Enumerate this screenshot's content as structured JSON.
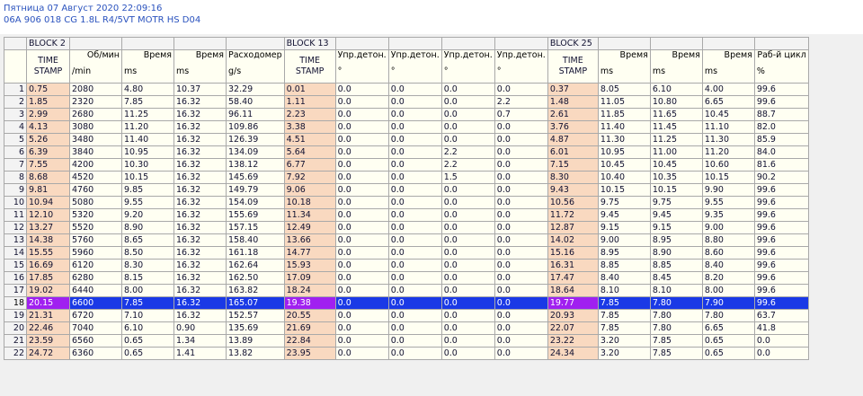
{
  "header": {
    "datetime": "Пятница 07 Август 2020 22:09:16",
    "ecu": "06A 906 018 CG  1.8L R4/5VT MOTR HS D04"
  },
  "blocks": [
    "BLOCK 2",
    "BLOCK 13",
    "BLOCK 25"
  ],
  "columns": [
    {
      "top": "",
      "bottom": "TIME\nSTAMP",
      "type": "ts"
    },
    {
      "top": "Об/мин",
      "bottom": "/min"
    },
    {
      "top": "Время",
      "bottom": "ms"
    },
    {
      "top": "Время",
      "bottom": "ms"
    },
    {
      "top": "Расходомер",
      "bottom": "g/s"
    },
    {
      "top": "",
      "bottom": "TIME\nSTAMP",
      "type": "ts"
    },
    {
      "top": "Упр.детон.",
      "bottom": "°"
    },
    {
      "top": "Упр.детон.",
      "bottom": "°"
    },
    {
      "top": "Упр.детон.",
      "bottom": "°"
    },
    {
      "top": "Упр.детон.",
      "bottom": "°"
    },
    {
      "top": "",
      "bottom": "TIME\nSTAMP",
      "type": "ts"
    },
    {
      "top": "Время",
      "bottom": "ms"
    },
    {
      "top": "Время",
      "bottom": "ms"
    },
    {
      "top": "Время",
      "bottom": "ms"
    },
    {
      "top": "Раб-й цикл",
      "bottom": "%"
    }
  ],
  "selected_row": 18,
  "rows": [
    [
      "0.75",
      "2080",
      "4.80",
      "10.37",
      "32.29",
      "0.01",
      "0.0",
      "0.0",
      "0.0",
      "0.0",
      "0.37",
      "8.05",
      "6.10",
      "4.00",
      "99.6"
    ],
    [
      "1.85",
      "2320",
      "7.85",
      "16.32",
      "58.40",
      "1.11",
      "0.0",
      "0.0",
      "0.0",
      "2.2",
      "1.48",
      "11.05",
      "10.80",
      "6.65",
      "99.6"
    ],
    [
      "2.99",
      "2680",
      "11.25",
      "16.32",
      "96.11",
      "2.23",
      "0.0",
      "0.0",
      "0.0",
      "0.7",
      "2.61",
      "11.85",
      "11.65",
      "10.45",
      "88.7"
    ],
    [
      "4.13",
      "3080",
      "11.20",
      "16.32",
      "109.86",
      "3.38",
      "0.0",
      "0.0",
      "0.0",
      "0.0",
      "3.76",
      "11.40",
      "11.45",
      "11.10",
      "82.0"
    ],
    [
      "5.26",
      "3480",
      "11.40",
      "16.32",
      "126.39",
      "4.51",
      "0.0",
      "0.0",
      "0.0",
      "0.0",
      "4.87",
      "11.30",
      "11.25",
      "11.30",
      "85.9"
    ],
    [
      "6.39",
      "3840",
      "10.95",
      "16.32",
      "134.09",
      "5.64",
      "0.0",
      "0.0",
      "2.2",
      "0.0",
      "6.01",
      "10.95",
      "11.00",
      "11.20",
      "84.0"
    ],
    [
      "7.55",
      "4200",
      "10.30",
      "16.32",
      "138.12",
      "6.77",
      "0.0",
      "0.0",
      "2.2",
      "0.0",
      "7.15",
      "10.45",
      "10.45",
      "10.60",
      "81.6"
    ],
    [
      "8.68",
      "4520",
      "10.15",
      "16.32",
      "145.69",
      "7.92",
      "0.0",
      "0.0",
      "1.5",
      "0.0",
      "8.30",
      "10.40",
      "10.35",
      "10.15",
      "90.2"
    ],
    [
      "9.81",
      "4760",
      "9.85",
      "16.32",
      "149.79",
      "9.06",
      "0.0",
      "0.0",
      "0.0",
      "0.0",
      "9.43",
      "10.15",
      "10.15",
      "9.90",
      "99.6"
    ],
    [
      "10.94",
      "5080",
      "9.55",
      "16.32",
      "154.09",
      "10.18",
      "0.0",
      "0.0",
      "0.0",
      "0.0",
      "10.56",
      "9.75",
      "9.75",
      "9.55",
      "99.6"
    ],
    [
      "12.10",
      "5320",
      "9.20",
      "16.32",
      "155.69",
      "11.34",
      "0.0",
      "0.0",
      "0.0",
      "0.0",
      "11.72",
      "9.45",
      "9.45",
      "9.35",
      "99.6"
    ],
    [
      "13.27",
      "5520",
      "8.90",
      "16.32",
      "157.15",
      "12.49",
      "0.0",
      "0.0",
      "0.0",
      "0.0",
      "12.87",
      "9.15",
      "9.15",
      "9.00",
      "99.6"
    ],
    [
      "14.38",
      "5760",
      "8.65",
      "16.32",
      "158.40",
      "13.66",
      "0.0",
      "0.0",
      "0.0",
      "0.0",
      "14.02",
      "9.00",
      "8.95",
      "8.80",
      "99.6"
    ],
    [
      "15.55",
      "5960",
      "8.50",
      "16.32",
      "161.18",
      "14.77",
      "0.0",
      "0.0",
      "0.0",
      "0.0",
      "15.16",
      "8.95",
      "8.90",
      "8.60",
      "99.6"
    ],
    [
      "16.69",
      "6120",
      "8.30",
      "16.32",
      "162.64",
      "15.93",
      "0.0",
      "0.0",
      "0.0",
      "0.0",
      "16.31",
      "8.85",
      "8.85",
      "8.40",
      "99.6"
    ],
    [
      "17.85",
      "6280",
      "8.15",
      "16.32",
      "162.50",
      "17.09",
      "0.0",
      "0.0",
      "0.0",
      "0.0",
      "17.47",
      "8.40",
      "8.45",
      "8.20",
      "99.6"
    ],
    [
      "19.02",
      "6440",
      "8.00",
      "16.32",
      "163.82",
      "18.24",
      "0.0",
      "0.0",
      "0.0",
      "0.0",
      "18.64",
      "8.10",
      "8.10",
      "8.00",
      "99.6"
    ],
    [
      "20.15",
      "6600",
      "7.85",
      "16.32",
      "165.07",
      "19.38",
      "0.0",
      "0.0",
      "0.0",
      "0.0",
      "19.77",
      "7.85",
      "7.80",
      "7.90",
      "99.6"
    ],
    [
      "21.31",
      "6720",
      "7.10",
      "16.32",
      "152.57",
      "20.55",
      "0.0",
      "0.0",
      "0.0",
      "0.0",
      "20.93",
      "7.85",
      "7.80",
      "7.80",
      "63.7"
    ],
    [
      "22.46",
      "7040",
      "6.10",
      "0.90",
      "135.69",
      "21.69",
      "0.0",
      "0.0",
      "0.0",
      "0.0",
      "22.07",
      "7.85",
      "7.80",
      "6.65",
      "41.8"
    ],
    [
      "23.59",
      "6560",
      "0.65",
      "1.34",
      "13.89",
      "22.84",
      "0.0",
      "0.0",
      "0.0",
      "0.0",
      "23.22",
      "3.20",
      "7.85",
      "0.65",
      "0.0"
    ],
    [
      "24.72",
      "6360",
      "0.65",
      "1.41",
      "13.82",
      "23.95",
      "0.0",
      "0.0",
      "0.0",
      "0.0",
      "24.34",
      "3.20",
      "7.85",
      "0.65",
      "0.0"
    ]
  ]
}
